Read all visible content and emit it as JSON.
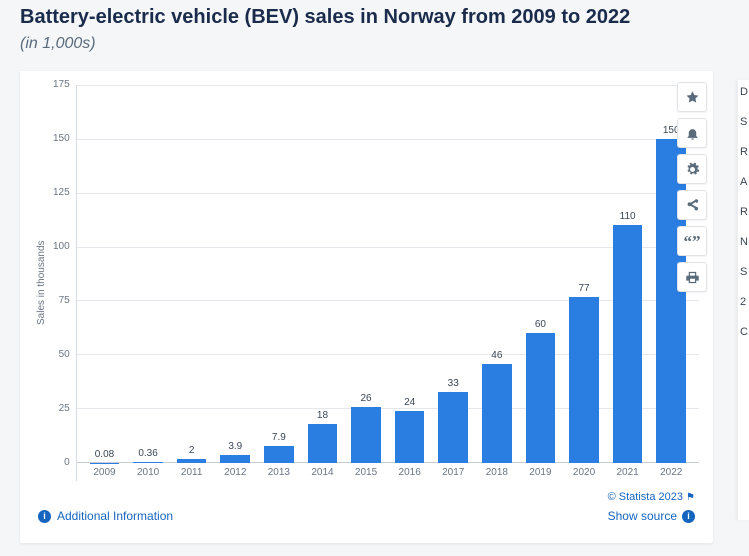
{
  "header": {
    "title": "Battery-electric vehicle (BEV) sales in Norway from 2009 to 2022",
    "subtitle": "(in 1,000s)"
  },
  "chart": {
    "type": "bar",
    "ylabel": "Sales in thousands",
    "ylim": [
      0,
      175
    ],
    "ytick_step": 25,
    "yticks": [
      175,
      150,
      125,
      100,
      75,
      50,
      25,
      0
    ],
    "categories": [
      "2009",
      "2010",
      "2011",
      "2012",
      "2013",
      "2014",
      "2015",
      "2016",
      "2017",
      "2018",
      "2019",
      "2020",
      "2021",
      "2022"
    ],
    "values": [
      0.08,
      0.36,
      2,
      3.9,
      7.9,
      18,
      26,
      24,
      33,
      46,
      60,
      77,
      110,
      150
    ],
    "value_labels": [
      "0.08",
      "0.36",
      "2",
      "3.9",
      "7.9",
      "18",
      "26",
      "24",
      "33",
      "46",
      "60",
      "77",
      "110",
      "150"
    ],
    "bar_color": "#2a7de1",
    "grid_color": "#e4e8ec",
    "axis_color": "#c6ccd2",
    "background_color": "#ffffff",
    "label_fontsize": 10,
    "bar_width": 0.68
  },
  "toolbar": {
    "icons": [
      "star",
      "bell",
      "gear",
      "share",
      "quote",
      "print"
    ]
  },
  "footer": {
    "additional_info": "Additional Information",
    "copyright": "© Statista 2023",
    "show_source": "Show source"
  },
  "sidepanel_letters": [
    "D",
    "S",
    "R",
    "A",
    "R",
    "N",
    "S",
    "2",
    "C"
  ]
}
